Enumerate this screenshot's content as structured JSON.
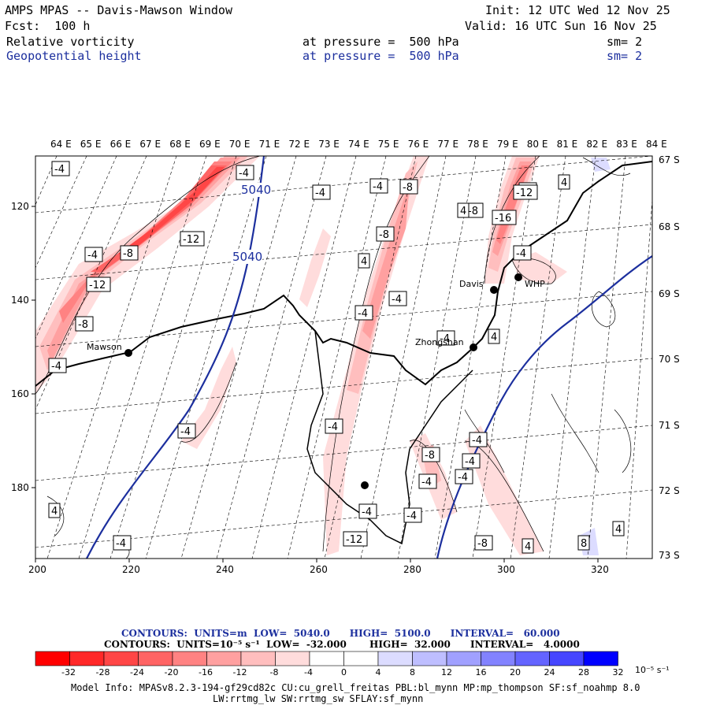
{
  "header": {
    "title": "AMPS MPAS -- Davis-Mawson Window",
    "forecast": "Fcst:  100 h",
    "init": "Init: 12 UTC Wed 12 Nov 25",
    "valid": "Valid: 16 UTC Sun 16 Nov 25",
    "field1_name": "Relative vorticity",
    "field1_level": "at pressure =  500 hPa",
    "field1_sm": "sm= 2",
    "field2_name": "Geopotential height",
    "field2_level": "at pressure =  500 hPa",
    "field2_sm": "sm= 2"
  },
  "map": {
    "lon_labels": [
      "64 E",
      "65 E",
      "66 E",
      "67 E",
      "68 E",
      "69 E",
      "70 E",
      "71 E",
      "72 E",
      "73 E",
      "74 E",
      "75 E",
      "76 E",
      "77 E",
      "78 E",
      "79 E",
      "80 E",
      "81 E",
      "82 E",
      "83 E",
      "84 E"
    ],
    "lat_labels": [
      "67 S",
      "68 S",
      "69 S",
      "70 S",
      "71 S",
      "72 S",
      "73 S"
    ],
    "x_ticks": [
      "200",
      "220",
      "240",
      "260",
      "280",
      "300",
      "320"
    ],
    "y_ticks": [
      "120",
      "140",
      "160",
      "180"
    ],
    "stations": [
      {
        "name": "Mawson"
      },
      {
        "name": "Zhongshan"
      },
      {
        "name": "Davis"
      },
      {
        "name": "WHP"
      }
    ],
    "height_labels": [
      "5040",
      "5040"
    ],
    "vort_labels": [
      "-4",
      "-4",
      "-4",
      "-8",
      "-4",
      "-12",
      "-8",
      "-4",
      "-12",
      "-8",
      "-4",
      "4",
      "-8",
      "-8",
      "-4",
      "4",
      "4",
      "-12",
      "-16",
      "-4",
      "-4",
      "-4",
      "4",
      "-4",
      "-4",
      "-4",
      "-4",
      "-8",
      "-4",
      "-4",
      "-8",
      "4",
      "4",
      "-4",
      "8",
      "-4",
      "4",
      "-4",
      "-12",
      "-4"
    ]
  },
  "contours_info": {
    "line1": "CONTOURS:  UNITS=m  LOW=  5040.0      HIGH=  5100.0      INTERVAL=   60.000",
    "line2": "CONTOURS:  UNITS=10⁻⁵ s⁻¹  LOW=  -32.000       HIGH=  32.000      INTERVAL=   4.0000"
  },
  "colorbar": {
    "ticks": [
      "-32",
      "-28",
      "-24",
      "-20",
      "-16",
      "-12",
      "-8",
      "-4",
      "0",
      "4",
      "8",
      "12",
      "16",
      "20",
      "24",
      "28",
      "32"
    ],
    "unit": "10⁻⁵ s⁻¹",
    "colors": [
      "#ff0000",
      "#ff2828",
      "#ff4646",
      "#ff6464",
      "#ff8282",
      "#ffa0a0",
      "#ffbebe",
      "#ffdcdc",
      "#ffffff",
      "#ffffff",
      "#dcdcff",
      "#bebeff",
      "#a0a0ff",
      "#8282ff",
      "#6464ff",
      "#4646ff",
      "#0000ff"
    ]
  },
  "model_info": {
    "line1": "Model Info: MPASv8.2.3-194-gf29cd82c CU:cu_grell_freitas PBL:bl_mynn MP:mp_thompson SF:sf_noahmp 8.0",
    "line2": "LW:rrtmg_lw SW:rrtmg_sw SFLAY:sf_mynn"
  }
}
